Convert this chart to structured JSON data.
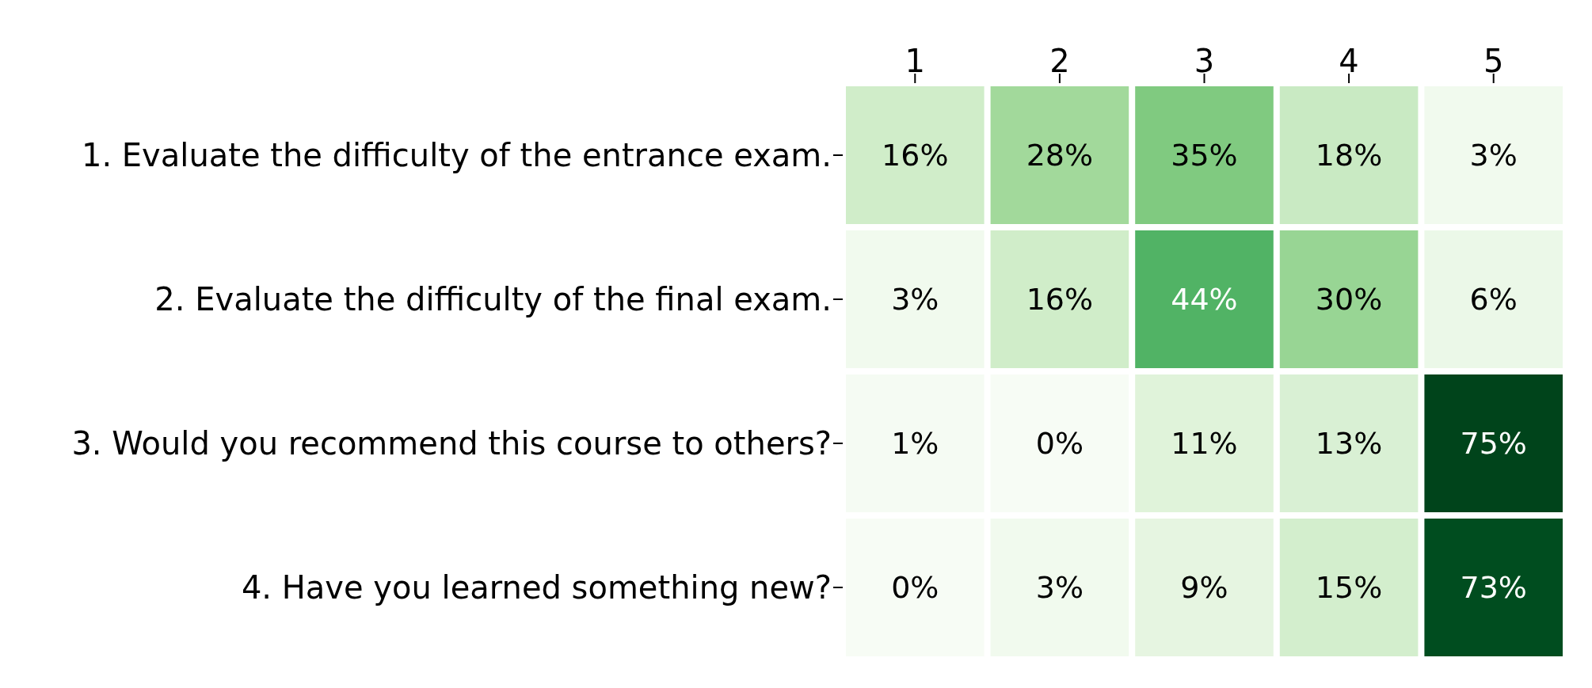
{
  "chart_data": {
    "type": "heatmap",
    "categories": [
      "1",
      "2",
      "3",
      "4",
      "5"
    ],
    "y_categories": [
      "1. Evaluate the difficulty of the entrance exam.",
      "2. Evaluate the difficulty of the final exam.",
      "3. Would you recommend this course to others?",
      "4. Have you learned something new?"
    ],
    "cells": [
      [
        16,
        28,
        35,
        18,
        3
      ],
      [
        3,
        16,
        44,
        30,
        6
      ],
      [
        1,
        0,
        11,
        13,
        75
      ],
      [
        0,
        3,
        9,
        15,
        73
      ]
    ],
    "cell_labels": [
      [
        "16%",
        "28%",
        "35%",
        "18%",
        "3%"
      ],
      [
        "3%",
        "16%",
        "44%",
        "30%",
        "6%"
      ],
      [
        "1%",
        "0%",
        "11%",
        "13%",
        "75%"
      ],
      [
        "0%",
        "3%",
        "9%",
        "15%",
        "73%"
      ]
    ]
  }
}
